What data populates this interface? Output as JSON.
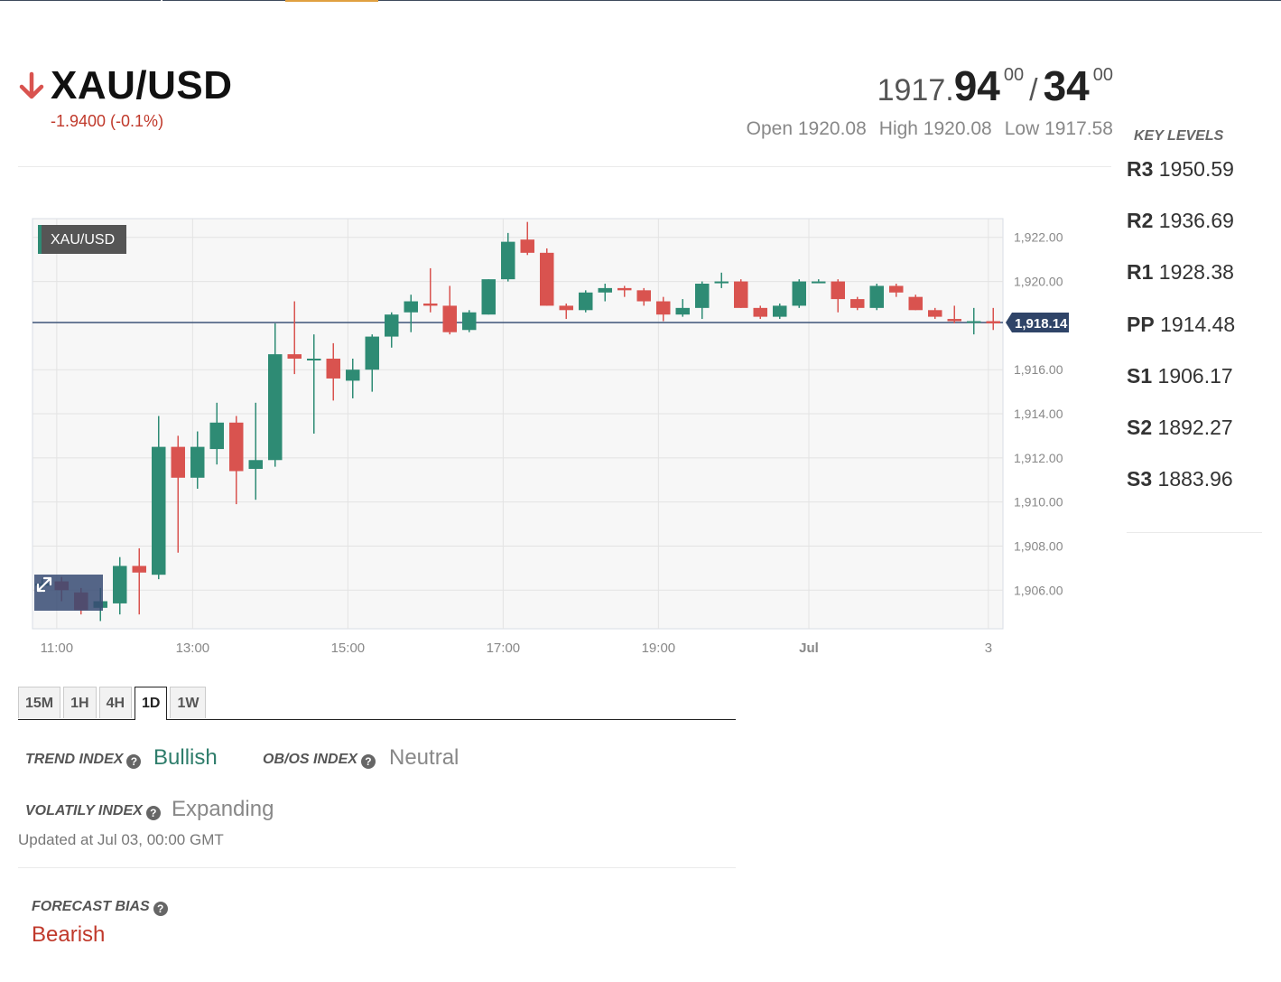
{
  "header": {
    "symbol": "XAU/USD",
    "direction": "down",
    "change": "-1.9400 (-0.1%)",
    "bid_small": "1917.",
    "bid_big": "94",
    "bid_sup": "00",
    "slash": "/",
    "ask_big": "34",
    "ask_sup": "00",
    "open": "Open 1920.08",
    "high": "High 1920.08",
    "low": "Low 1917.58"
  },
  "key_levels": {
    "title": "KEY LEVELS",
    "items": [
      {
        "name": "R3",
        "value": "1950.59"
      },
      {
        "name": "R2",
        "value": "1936.69"
      },
      {
        "name": "R1",
        "value": "1928.38"
      },
      {
        "name": "PP",
        "value": "1914.48"
      },
      {
        "name": "S1",
        "value": "1906.17"
      },
      {
        "name": "S2",
        "value": "1892.27"
      },
      {
        "name": "S3",
        "value": "1883.96"
      }
    ]
  },
  "colors": {
    "up": "#2e8b74",
    "down": "#d9534f",
    "bearish": "#c0392b",
    "bullish": "#2e7d6b",
    "neutral": "#888888"
  },
  "chart_data": {
    "type": "candlestick",
    "legend_label": "XAU/USD",
    "last_price_label": "1,918.14",
    "last_price": 1918.14,
    "ylim": [
      1904.25,
      1922.85
    ],
    "y_ticks": [
      {
        "value": 1922,
        "label": "1,922.00"
      },
      {
        "value": 1920,
        "label": "1,920.00"
      },
      {
        "value": 1916,
        "label": "1,916.00"
      },
      {
        "value": 1914,
        "label": "1,914.00"
      },
      {
        "value": 1912,
        "label": "1,912.00"
      },
      {
        "value": 1910,
        "label": "1,910.00"
      },
      {
        "value": 1908,
        "label": "1,908.00"
      },
      {
        "value": 1906,
        "label": "1,906.00"
      }
    ],
    "x_ticks": [
      {
        "index": 0.75,
        "label": "11:00"
      },
      {
        "index": 7.75,
        "label": "13:00"
      },
      {
        "index": 15.75,
        "label": "15:00"
      },
      {
        "index": 23.75,
        "label": "17:00"
      },
      {
        "index": 31.75,
        "label": "19:00"
      },
      {
        "index": 39.5,
        "label": "Jul"
      },
      {
        "index": 48.75,
        "label": "3"
      }
    ],
    "candles": [
      {
        "o": 1906.2,
        "h": 1906.5,
        "l": 1905.9,
        "c": 1906.3
      },
      {
        "o": 1906.4,
        "h": 1906.6,
        "l": 1905.5,
        "c": 1906.0
      },
      {
        "o": 1905.9,
        "h": 1906.1,
        "l": 1904.9,
        "c": 1905.1
      },
      {
        "o": 1905.2,
        "h": 1906.1,
        "l": 1904.6,
        "c": 1905.5
      },
      {
        "o": 1905.4,
        "h": 1907.5,
        "l": 1904.9,
        "c": 1907.1
      },
      {
        "o": 1907.1,
        "h": 1907.9,
        "l": 1904.9,
        "c": 1906.8
      },
      {
        "o": 1906.7,
        "h": 1913.9,
        "l": 1906.5,
        "c": 1912.5
      },
      {
        "o": 1912.5,
        "h": 1913.0,
        "l": 1907.7,
        "c": 1911.1
      },
      {
        "o": 1911.1,
        "h": 1913.2,
        "l": 1910.6,
        "c": 1912.5
      },
      {
        "o": 1912.4,
        "h": 1914.5,
        "l": 1911.7,
        "c": 1913.6
      },
      {
        "o": 1913.6,
        "h": 1913.9,
        "l": 1909.9,
        "c": 1911.4
      },
      {
        "o": 1911.5,
        "h": 1914.5,
        "l": 1910.1,
        "c": 1911.9
      },
      {
        "o": 1911.9,
        "h": 1918.1,
        "l": 1911.6,
        "c": 1916.7
      },
      {
        "o": 1916.7,
        "h": 1919.1,
        "l": 1915.8,
        "c": 1916.5
      },
      {
        "o": 1916.5,
        "h": 1917.6,
        "l": 1913.1,
        "c": 1916.5
      },
      {
        "o": 1916.5,
        "h": 1917.2,
        "l": 1914.6,
        "c": 1915.6
      },
      {
        "o": 1915.5,
        "h": 1916.5,
        "l": 1914.7,
        "c": 1916.0
      },
      {
        "o": 1916.0,
        "h": 1917.6,
        "l": 1915.0,
        "c": 1917.5
      },
      {
        "o": 1917.5,
        "h": 1918.6,
        "l": 1917.0,
        "c": 1918.5
      },
      {
        "o": 1918.6,
        "h": 1919.4,
        "l": 1917.7,
        "c": 1919.1
      },
      {
        "o": 1919.0,
        "h": 1920.6,
        "l": 1918.6,
        "c": 1918.9
      },
      {
        "o": 1918.9,
        "h": 1919.8,
        "l": 1917.6,
        "c": 1917.7
      },
      {
        "o": 1917.8,
        "h": 1918.7,
        "l": 1917.7,
        "c": 1918.6
      },
      {
        "o": 1918.5,
        "h": 1920.1,
        "l": 1918.5,
        "c": 1920.1
      },
      {
        "o": 1920.1,
        "h": 1922.2,
        "l": 1920.0,
        "c": 1921.8
      },
      {
        "o": 1921.9,
        "h": 1922.7,
        "l": 1921.2,
        "c": 1921.3
      },
      {
        "o": 1921.3,
        "h": 1921.5,
        "l": 1918.9,
        "c": 1918.9
      },
      {
        "o": 1918.9,
        "h": 1919.0,
        "l": 1918.3,
        "c": 1918.7
      },
      {
        "o": 1918.7,
        "h": 1919.6,
        "l": 1918.6,
        "c": 1919.5
      },
      {
        "o": 1919.5,
        "h": 1919.9,
        "l": 1919.1,
        "c": 1919.7
      },
      {
        "o": 1919.7,
        "h": 1919.8,
        "l": 1919.3,
        "c": 1919.6
      },
      {
        "o": 1919.6,
        "h": 1919.7,
        "l": 1918.9,
        "c": 1919.1
      },
      {
        "o": 1919.1,
        "h": 1919.3,
        "l": 1918.2,
        "c": 1918.5
      },
      {
        "o": 1918.5,
        "h": 1919.2,
        "l": 1918.4,
        "c": 1918.8
      },
      {
        "o": 1918.8,
        "h": 1920.0,
        "l": 1918.3,
        "c": 1919.9
      },
      {
        "o": 1920.0,
        "h": 1920.4,
        "l": 1919.7,
        "c": 1920.0
      },
      {
        "o": 1920.0,
        "h": 1920.1,
        "l": 1918.8,
        "c": 1918.8
      },
      {
        "o": 1918.8,
        "h": 1918.9,
        "l": 1918.3,
        "c": 1918.4
      },
      {
        "o": 1918.4,
        "h": 1919.0,
        "l": 1918.3,
        "c": 1918.9
      },
      {
        "o": 1918.9,
        "h": 1920.1,
        "l": 1918.8,
        "c": 1920.0
      },
      {
        "o": 1920.0,
        "h": 1920.1,
        "l": 1920.0,
        "c": 1920.0
      },
      {
        "o": 1920.0,
        "h": 1920.1,
        "l": 1918.6,
        "c": 1919.2
      },
      {
        "o": 1919.2,
        "h": 1919.3,
        "l": 1918.7,
        "c": 1918.8
      },
      {
        "o": 1918.8,
        "h": 1919.9,
        "l": 1918.7,
        "c": 1919.8
      },
      {
        "o": 1919.8,
        "h": 1919.9,
        "l": 1919.3,
        "c": 1919.5
      },
      {
        "o": 1919.3,
        "h": 1919.4,
        "l": 1918.7,
        "c": 1918.7
      },
      {
        "o": 1918.7,
        "h": 1918.8,
        "l": 1918.3,
        "c": 1918.4
      },
      {
        "o": 1918.3,
        "h": 1918.9,
        "l": 1918.1,
        "c": 1918.2
      },
      {
        "o": 1918.2,
        "h": 1918.8,
        "l": 1917.6,
        "c": 1918.2
      },
      {
        "o": 1918.2,
        "h": 1918.8,
        "l": 1917.8,
        "c": 1918.1
      }
    ]
  },
  "timeframes": [
    {
      "label": "15M",
      "active": false
    },
    {
      "label": "1H",
      "active": false
    },
    {
      "label": "4H",
      "active": false
    },
    {
      "label": "1D",
      "active": true
    },
    {
      "label": "1W",
      "active": false
    }
  ],
  "indicators": {
    "trend_label": "TREND INDEX",
    "trend_value": "Bullish",
    "obos_label": "OB/OS INDEX",
    "obos_value": "Neutral",
    "volatility_label": "VOLATILY INDEX",
    "volatility_value": "Expanding",
    "updated": "Updated at Jul 03, 00:00 GMT",
    "forecast_label": "FORECAST BIAS",
    "forecast_value": "Bearish",
    "help_glyph": "?"
  }
}
